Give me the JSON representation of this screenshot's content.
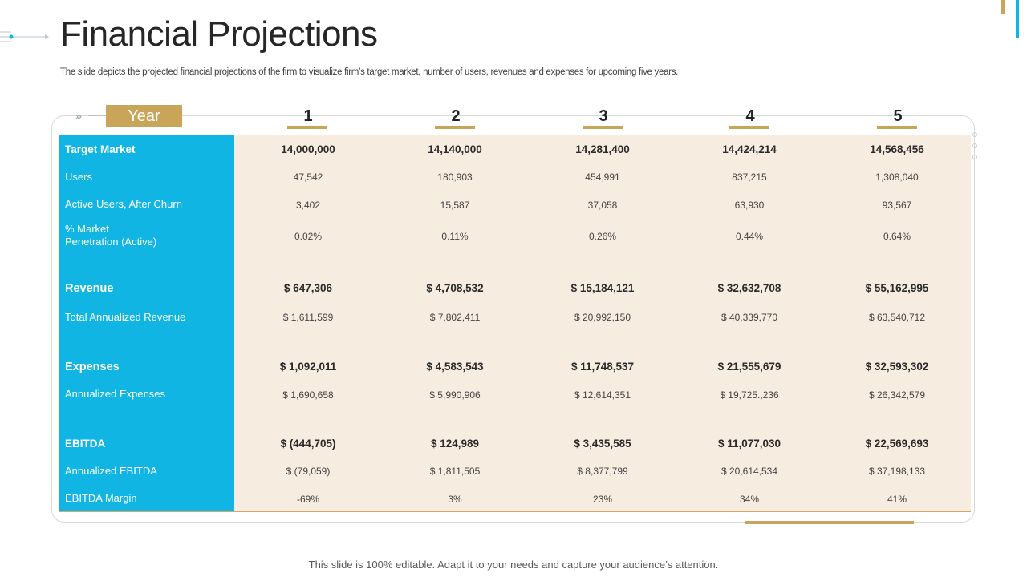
{
  "header": {
    "title": "Financial Projections",
    "subtitle": "The slide depicts the projected financial projections of the firm to visualize firm’s target market, number of users, revenues and expenses for upcoming five years."
  },
  "table": {
    "year_label": "Year",
    "years": [
      "1",
      "2",
      "3",
      "4",
      "5"
    ],
    "rows": [
      {
        "label": "Target Market",
        "style": "bold",
        "values": [
          "14,000,000",
          "14,140,000",
          "14,281,400",
          "14,424,214",
          "14,568,456"
        ]
      },
      {
        "label": "Users",
        "style": "normal",
        "values": [
          "47,542",
          "180,903",
          "454,991",
          "837,215",
          "1,308,040"
        ]
      },
      {
        "label": "Active Users, After Churn",
        "style": "normal",
        "values": [
          "3,402",
          "15,587",
          "37,058",
          "63,930",
          "93,567"
        ]
      },
      {
        "label_line1": "% Market",
        "label_line2": "Penetration (Active)",
        "style": "normal",
        "values": [
          "0.02%",
          "0.11%",
          "0.26%",
          "0.44%",
          "0.64%"
        ]
      },
      {
        "label": "Revenue",
        "style": "big",
        "values": [
          "$ 647,306",
          "$ 4,708,532",
          "$ 15,184,121",
          "$ 32,632,708",
          "$ 55,162,995"
        ]
      },
      {
        "label": "Total Annualized Revenue",
        "style": "normal",
        "values": [
          "$ 1,611,599",
          "$ 7,802,411",
          "$ 20,992,150",
          "$ 40,339,770",
          "$ 63,540,712"
        ]
      },
      {
        "label": "Expenses",
        "style": "big",
        "values": [
          "$ 1,092,011",
          "$ 4,583,543",
          "$ 11,748,537",
          "$ 21,555,679",
          "$ 32,593,302"
        ]
      },
      {
        "label": "Annualized Expenses",
        "style": "normal",
        "values": [
          "$ 1,690,658",
          "$ 5,990,906",
          "$ 12,614,351",
          "$ 19,725.,236",
          "$ 26,342,579"
        ]
      },
      {
        "label": "EBITDA",
        "style": "bold",
        "values": [
          "$ (444,705)",
          "$ 124,989",
          "$ 3,435,585",
          "$ 11,077,030",
          "$ 22,569,693"
        ]
      },
      {
        "label": "Annualized EBITDA",
        "style": "normal",
        "values": [
          "$ (79,059)",
          "$ 1,811,505",
          "$ 8,377,799",
          "$ 20,614,534",
          "$ 37,198,133"
        ]
      },
      {
        "label": "EBITDA Margin",
        "style": "normal",
        "values": [
          "-69%",
          "3%",
          "23%",
          "34%",
          "41%"
        ]
      }
    ]
  },
  "footer": {
    "text": "This slide is 100% editable. Adapt it to your needs and capture your audience’s attention."
  },
  "colors": {
    "accent_gold": "#c9a55a",
    "accent_blue": "#11b5e4",
    "beige_background": "#f6ece0"
  }
}
